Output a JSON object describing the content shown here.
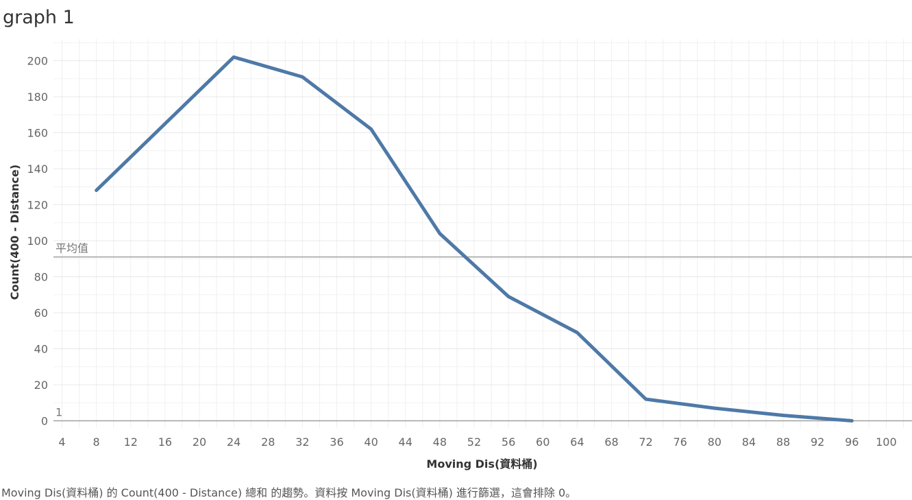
{
  "title": "graph 1",
  "footer": "Moving Dis(資料桶) 的 Count(400 - Distance) 總和 的趨勢。資料按 Moving Dis(資料桶) 進行篩選，這會排除 0。",
  "chart_data": {
    "type": "line",
    "x": [
      8,
      16,
      24,
      32,
      40,
      48,
      56,
      64,
      72,
      80,
      88,
      96
    ],
    "series": [
      {
        "values": [
          128,
          165,
          202,
          191,
          162,
          104,
          69,
          49,
          12,
          7,
          3,
          0
        ],
        "color": "#4e79a7"
      }
    ],
    "xlabel": "Moving Dis(資料桶)",
    "ylabel": "Count(400 - Distance)",
    "xlim": [
      3,
      103
    ],
    "ylim": [
      -4,
      212
    ],
    "xticks": [
      4,
      8,
      12,
      16,
      20,
      24,
      28,
      32,
      36,
      40,
      44,
      48,
      52,
      56,
      60,
      64,
      68,
      72,
      76,
      80,
      84,
      88,
      92,
      96,
      100
    ],
    "yticks": [
      0,
      20,
      40,
      60,
      80,
      100,
      120,
      140,
      160,
      180,
      200
    ],
    "grid": true,
    "reference_lines": [
      {
        "label": "平均值",
        "value": 91
      },
      {
        "label": "1",
        "value": 0
      }
    ]
  }
}
